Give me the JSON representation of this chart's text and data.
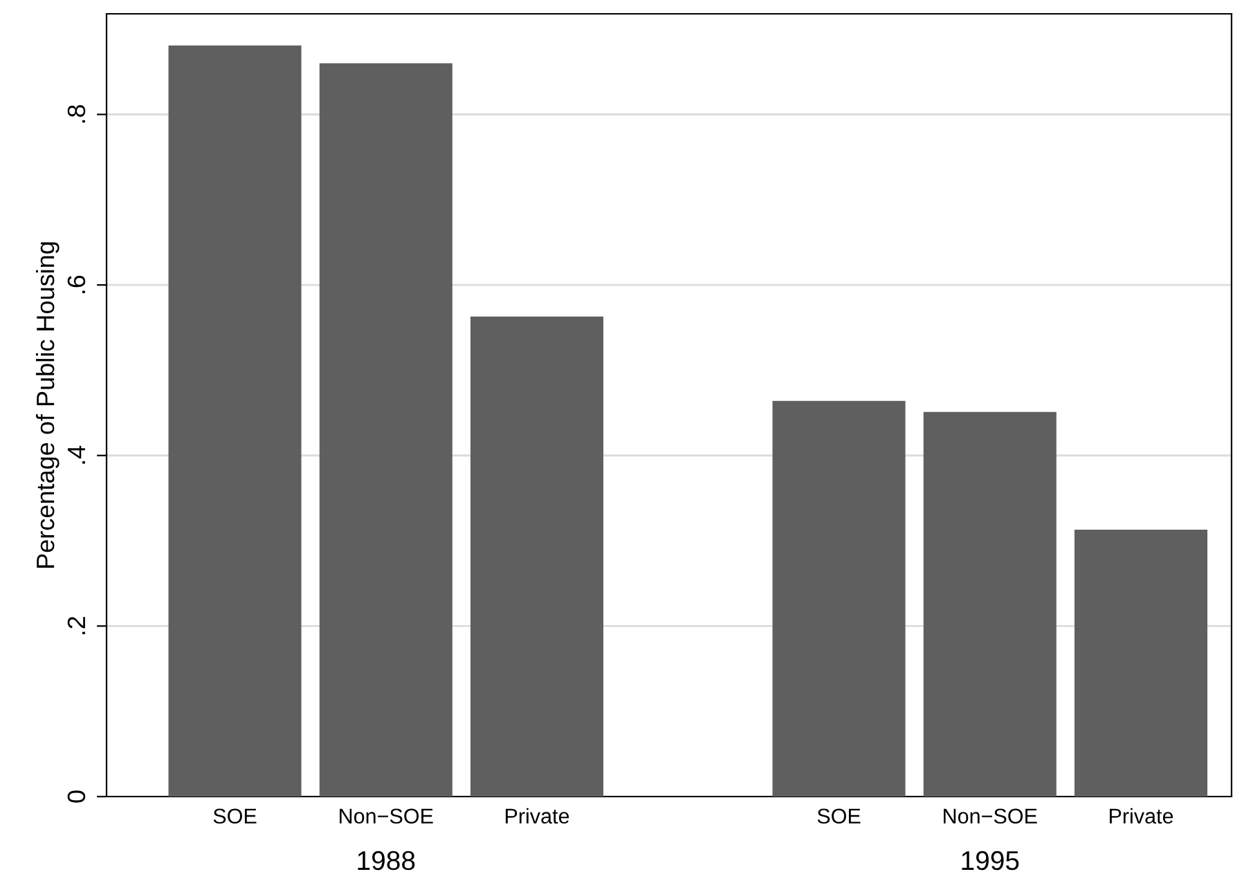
{
  "chart_data": {
    "type": "bar",
    "ylabel": "Percentage of Public Housing",
    "categories": [
      "SOE",
      "Non−SOE",
      "Private",
      null,
      "SOE",
      "Non−SOE",
      "Private"
    ],
    "values": [
      0.881,
      0.86,
      0.563,
      null,
      0.464,
      0.451,
      0.313
    ],
    "color": "#5f5f5f",
    "annotations": [
      "1988",
      "1995"
    ],
    "ylim": [
      0,
      0.918
    ],
    "yticks": [
      0,
      {
        "value": 0.2,
        "label": ".2"
      },
      {
        "value": 0.4,
        "label": ".4"
      },
      {
        "value": 0.6,
        "label": ".6"
      },
      {
        "value": 0.8,
        "label": ".8"
      }
    ],
    "grid": "y"
  }
}
